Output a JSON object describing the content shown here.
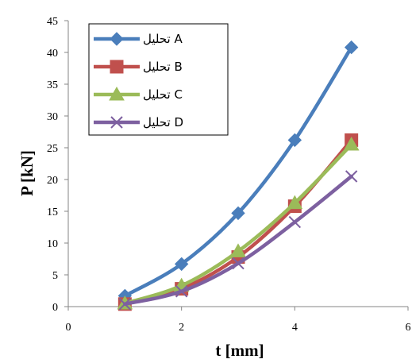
{
  "chart_data": {
    "type": "line",
    "xlabel": "t [mm]",
    "ylabel": "P [kN]",
    "xlim": [
      0,
      6
    ],
    "ylim": [
      0,
      45
    ],
    "xticks": [
      "0",
      "2",
      "4",
      "6"
    ],
    "yticks": [
      "0",
      "5",
      "10",
      "15",
      "20",
      "25",
      "30",
      "35",
      "40",
      "45"
    ],
    "grid": false,
    "smooth": true,
    "legend_position": "top-left",
    "x": [
      1,
      2,
      3,
      4,
      5
    ],
    "series": [
      {
        "name": "تحليل A",
        "color": "#4a7ebb",
        "marker": "diamond",
        "values": [
          1.7,
          6.7,
          14.7,
          26.2,
          40.8
        ]
      },
      {
        "name": "تحليل B",
        "color": "#c0504d",
        "marker": "square",
        "values": [
          0.4,
          2.8,
          7.8,
          15.8,
          26.2
        ]
      },
      {
        "name": "تحليل C",
        "color": "#9bbb59",
        "marker": "triangle",
        "values": [
          0.5,
          3.3,
          8.7,
          16.3,
          25.5
        ]
      },
      {
        "name": "تحليل D",
        "color": "#7d60a0",
        "marker": "x",
        "values": [
          0.4,
          2.4,
          6.8,
          13.3,
          20.5
        ]
      }
    ]
  }
}
